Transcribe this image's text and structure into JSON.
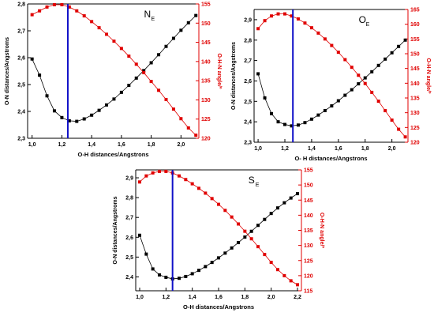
{
  "colors": {
    "left_series": "#000000",
    "right_series": "#e00000",
    "marker_line": "#1010c8",
    "axis": "#000000"
  },
  "chart_data": [
    {
      "type": "line",
      "title_main": "N",
      "title_sub": "E",
      "xlabel": "O-H distances/Angstrons",
      "ylabel_left": "O-N distances/Angstroms",
      "ylabel_right": "O-H-N angle/º",
      "xlim": [
        0.97,
        2.12
      ],
      "ylim_left": [
        2.3,
        2.8
      ],
      "ylim_right": [
        120,
        155
      ],
      "x_ticks": [
        1.0,
        1.2,
        1.4,
        1.6,
        1.8,
        2.0
      ],
      "x_tick_labels": [
        "1,0",
        "1,2",
        "1,4",
        "1,6",
        "1,8",
        "2,0"
      ],
      "y_left_ticks": [
        2.3,
        2.4,
        2.5,
        2.6,
        2.7,
        2.8
      ],
      "y_left_tick_labels": [
        "2,3",
        "2,4",
        "2,5",
        "2,6",
        "2,7",
        "2,8"
      ],
      "y_right_ticks": [
        120,
        125,
        130,
        135,
        140,
        145,
        150,
        155
      ],
      "y_right_tick_labels": [
        "120",
        "125",
        "130",
        "135",
        "140",
        "145",
        "150",
        "155"
      ],
      "vline_x": 1.24,
      "series": [
        {
          "axis": "left",
          "x": [
            1.0,
            1.05,
            1.1,
            1.15,
            1.2,
            1.25,
            1.3,
            1.35,
            1.4,
            1.45,
            1.5,
            1.55,
            1.6,
            1.65,
            1.7,
            1.75,
            1.8,
            1.85,
            1.9,
            1.95,
            2.0,
            2.05,
            2.1
          ],
          "values": [
            2.595,
            2.535,
            2.458,
            2.402,
            2.377,
            2.365,
            2.363,
            2.372,
            2.386,
            2.404,
            2.424,
            2.446,
            2.471,
            2.497,
            2.524,
            2.552,
            2.581,
            2.611,
            2.642,
            2.672,
            2.702,
            2.73,
            2.757
          ]
        },
        {
          "axis": "right",
          "x": [
            1.0,
            1.05,
            1.1,
            1.15,
            1.2,
            1.25,
            1.3,
            1.35,
            1.4,
            1.45,
            1.5,
            1.55,
            1.6,
            1.65,
            1.7,
            1.75,
            1.8,
            1.85,
            1.9,
            1.95,
            2.0,
            2.05,
            2.1
          ],
          "values": [
            152.2,
            153.2,
            154.2,
            154.8,
            154.8,
            154.2,
            153.2,
            151.9,
            150.4,
            148.8,
            147.1,
            145.3,
            143.4,
            141.4,
            139.3,
            137.1,
            134.8,
            132.5,
            130.1,
            127.6,
            125.1,
            122.7,
            120.8
          ]
        }
      ]
    },
    {
      "type": "line",
      "title_main": "O",
      "title_sub": "E",
      "xlabel": "O- H distances/Angstrons",
      "ylabel_left": "O-N distances/Angstroms",
      "ylabel_right": "O-H-N angle/º",
      "xlim": [
        0.97,
        2.12
      ],
      "ylim_left": [
        2.3,
        2.95
      ],
      "ylim_right": [
        120,
        165
      ],
      "x_ticks": [
        1.0,
        1.2,
        1.4,
        1.6,
        1.8,
        2.0
      ],
      "x_tick_labels": [
        "1,0",
        "1,2",
        "1,4",
        "1,6",
        "1,8",
        "2,0"
      ],
      "y_left_ticks": [
        2.3,
        2.4,
        2.5,
        2.6,
        2.7,
        2.8,
        2.9
      ],
      "y_left_tick_labels": [
        "2,3",
        "2,4",
        "2,5",
        "2,6",
        "2,7",
        "2,8",
        "2,9"
      ],
      "y_right_ticks": [
        120,
        125,
        130,
        135,
        140,
        145,
        150,
        155,
        160,
        165
      ],
      "y_right_tick_labels": [
        "120",
        "125",
        "130",
        "135",
        "140",
        "145",
        "150",
        "155",
        "160",
        "165"
      ],
      "vline_x": 1.26,
      "series": [
        {
          "axis": "left",
          "x": [
            1.0,
            1.05,
            1.1,
            1.15,
            1.2,
            1.25,
            1.3,
            1.35,
            1.4,
            1.45,
            1.5,
            1.55,
            1.6,
            1.65,
            1.7,
            1.75,
            1.8,
            1.85,
            1.9,
            1.95,
            2.0,
            2.05,
            2.1
          ],
          "values": [
            2.635,
            2.517,
            2.44,
            2.4,
            2.387,
            2.38,
            2.384,
            2.396,
            2.413,
            2.433,
            2.455,
            2.478,
            2.503,
            2.53,
            2.557,
            2.586,
            2.615,
            2.645,
            2.676,
            2.707,
            2.738,
            2.769,
            2.8
          ]
        },
        {
          "axis": "right",
          "x": [
            1.0,
            1.05,
            1.1,
            1.15,
            1.2,
            1.25,
            1.3,
            1.35,
            1.4,
            1.45,
            1.5,
            1.55,
            1.6,
            1.65,
            1.7,
            1.75,
            1.8,
            1.85,
            1.9,
            1.95,
            2.0,
            2.05,
            2.1
          ],
          "values": [
            158.5,
            161.2,
            162.8,
            163.5,
            163.5,
            162.8,
            161.8,
            160.4,
            158.8,
            157.0,
            155.0,
            152.8,
            150.5,
            148.0,
            145.4,
            142.7,
            139.9,
            136.9,
            133.9,
            130.7,
            127.5,
            124.4,
            121.8
          ]
        }
      ]
    },
    {
      "type": "line",
      "title_main": "S",
      "title_sub": "E",
      "xlabel": "O-H distances/Angstrons",
      "ylabel_left": "O-N distances/Angstroms",
      "ylabel_right": "O-H-N angle/º",
      "xlim": [
        0.97,
        2.23
      ],
      "ylim_left": [
        2.33,
        2.94
      ],
      "ylim_right": [
        115,
        155
      ],
      "x_ticks": [
        1.0,
        1.2,
        1.4,
        1.6,
        1.8,
        2.0,
        2.2
      ],
      "x_tick_labels": [
        "1,0",
        "1,2",
        "1,4",
        "1,6",
        "1,8",
        "2,0",
        "2,2"
      ],
      "y_left_ticks": [
        2.4,
        2.5,
        2.6,
        2.7,
        2.8,
        2.9
      ],
      "y_left_tick_labels": [
        "2,4",
        "2,5",
        "2,6",
        "2,7",
        "2,8",
        "2,9"
      ],
      "y_right_ticks": [
        115,
        120,
        125,
        130,
        135,
        140,
        145,
        150,
        155
      ],
      "y_right_tick_labels": [
        "115",
        "120",
        "125",
        "130",
        "135",
        "140",
        "145",
        "150",
        "155"
      ],
      "vline_x": 1.25,
      "series": [
        {
          "axis": "left",
          "x": [
            1.0,
            1.05,
            1.1,
            1.15,
            1.2,
            1.25,
            1.3,
            1.35,
            1.4,
            1.45,
            1.5,
            1.55,
            1.6,
            1.65,
            1.7,
            1.75,
            1.8,
            1.85,
            1.9,
            1.95,
            2.0,
            2.05,
            2.1,
            2.15,
            2.2
          ],
          "values": [
            2.61,
            2.515,
            2.44,
            2.41,
            2.398,
            2.39,
            2.393,
            2.402,
            2.416,
            2.433,
            2.452,
            2.473,
            2.496,
            2.52,
            2.546,
            2.573,
            2.601,
            2.63,
            2.66,
            2.69,
            2.72,
            2.748,
            2.774,
            2.798,
            2.82
          ]
        },
        {
          "axis": "right",
          "x": [
            1.0,
            1.05,
            1.1,
            1.15,
            1.2,
            1.25,
            1.3,
            1.35,
            1.4,
            1.45,
            1.5,
            1.55,
            1.6,
            1.65,
            1.7,
            1.75,
            1.8,
            1.85,
            1.9,
            1.95,
            2.0,
            2.05,
            2.1,
            2.15,
            2.2
          ],
          "values": [
            151.0,
            153.0,
            154.0,
            154.5,
            154.5,
            154.0,
            153.0,
            151.8,
            150.4,
            148.9,
            147.3,
            145.5,
            143.6,
            141.6,
            139.4,
            137.1,
            134.7,
            132.2,
            129.6,
            127.0,
            124.4,
            122.0,
            120.0,
            118.3,
            117.0
          ]
        }
      ]
    }
  ]
}
